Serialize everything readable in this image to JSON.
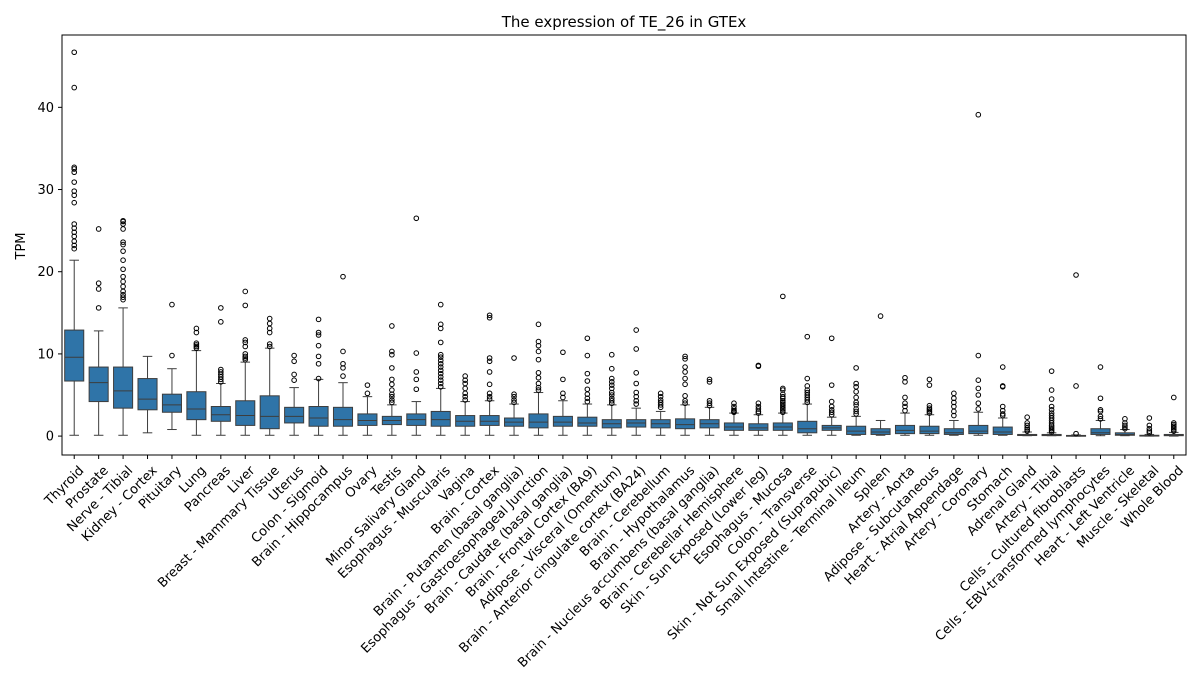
{
  "chart_data": {
    "type": "box",
    "title": "The expression of TE_26 in GTEx",
    "xlabel": "",
    "ylabel": "TPM",
    "ylim": [
      -2.3,
      48.8
    ],
    "yticks": [
      0,
      10,
      20,
      30,
      40
    ],
    "grid": false,
    "legend": "none",
    "box_color": "#2f74a8",
    "categories": [
      "Thyroid",
      "Prostate",
      "Nerve - Tibial",
      "Kidney - Cortex",
      "Pituitary",
      "Lung",
      "Pancreas",
      "Liver",
      "Breast - Mammary Tissue",
      "Uterus",
      "Colon - Sigmoid",
      "Brain - Hippocampus",
      "Ovary",
      "Testis",
      "Minor Salivary Gland",
      "Esophagus - Muscularis",
      "Vagina",
      "Brain - Cortex",
      "Brain - Putamen (basal ganglia)",
      "Esophagus - Gastroesophageal Junction",
      "Brain - Caudate (basal ganglia)",
      "Brain - Frontal Cortex (BA9)",
      "Adipose - Visceral (Omentum)",
      "Brain - Anterior cingulate cortex (BA24)",
      "Brain - Cerebellum",
      "Brain - Hypothalamus",
      "Brain - Nucleus accumbens (basal ganglia)",
      "Brain - Cerebellar Hemisphere",
      "Skin - Sun Exposed (Lower leg)",
      "Esophagus - Mucosa",
      "Colon - Transverse",
      "Skin - Not Sun Exposed (Suprapubic)",
      "Small Intestine - Terminal Ileum",
      "Spleen",
      "Artery - Aorta",
      "Adipose - Subcutaneous",
      "Heart - Atrial Appendage",
      "Artery - Coronary",
      "Stomach",
      "Adrenal Gland",
      "Artery - Tibial",
      "Cells - Cultured fibroblasts",
      "Cells - EBV-transformed lymphocytes",
      "Heart - Left Ventricle",
      "Muscle - Skeletal",
      "Whole Blood"
    ],
    "boxes": [
      {
        "min": 0.1,
        "q1": 6.7,
        "median": 9.6,
        "q3": 12.9,
        "max": 21.4,
        "outliers": [
          22.8,
          23.2,
          23.7,
          24.3,
          24.8,
          25.3,
          25.8,
          28.4,
          29.3,
          29.8,
          30.9,
          32.1,
          32.5,
          32.7,
          42.4,
          46.7
        ]
      },
      {
        "min": 0.1,
        "q1": 4.2,
        "median": 6.5,
        "q3": 8.4,
        "max": 12.8,
        "outliers": [
          15.6,
          17.9,
          18.6,
          25.2
        ]
      },
      {
        "min": 0.1,
        "q1": 3.4,
        "median": 5.5,
        "q3": 8.4,
        "max": 15.6,
        "outliers": [
          16.6,
          16.9,
          17.2,
          17.6,
          18.2,
          18.8,
          19.4,
          20.3,
          21.4,
          22.5,
          23.3,
          23.6,
          25.2,
          25.8,
          26.1,
          26.2
        ]
      },
      {
        "min": 0.4,
        "q1": 3.2,
        "median": 4.5,
        "q3": 7.0,
        "max": 9.7,
        "outliers": []
      },
      {
        "min": 0.8,
        "q1": 2.9,
        "median": 3.8,
        "q3": 5.1,
        "max": 8.2,
        "outliers": [
          9.8,
          16.0
        ]
      },
      {
        "min": 0.1,
        "q1": 2.0,
        "median": 3.3,
        "q3": 5.4,
        "max": 10.4,
        "outliers": [
          10.7,
          10.9,
          11.1,
          11.3,
          12.6,
          13.1
        ]
      },
      {
        "min": 0.1,
        "q1": 1.8,
        "median": 2.6,
        "q3": 3.6,
        "max": 6.4,
        "outliers": [
          6.6,
          6.9,
          7.2,
          7.5,
          7.8,
          8.1,
          13.9,
          15.6
        ]
      },
      {
        "min": 0.1,
        "q1": 1.3,
        "median": 2.5,
        "q3": 4.3,
        "max": 9.0,
        "outliers": [
          9.3,
          9.5,
          9.7,
          10.0,
          10.9,
          11.4,
          11.7,
          15.9,
          17.6
        ]
      },
      {
        "min": 0.1,
        "q1": 0.9,
        "median": 2.4,
        "q3": 4.9,
        "max": 10.7,
        "outliers": [
          10.9,
          11.2,
          12.6,
          13.1,
          13.7,
          14.3
        ]
      },
      {
        "min": 0.1,
        "q1": 1.6,
        "median": 2.4,
        "q3": 3.5,
        "max": 5.9,
        "outliers": [
          6.8,
          7.5,
          9.1,
          9.8
        ]
      },
      {
        "min": 0.1,
        "q1": 1.2,
        "median": 2.2,
        "q3": 3.6,
        "max": 6.9,
        "outliers": [
          7.0,
          8.8,
          9.7,
          11.0,
          12.3,
          12.6,
          14.2
        ]
      },
      {
        "min": 0.1,
        "q1": 1.2,
        "median": 2.0,
        "q3": 3.5,
        "max": 6.5,
        "outliers": [
          7.3,
          8.3,
          8.8,
          10.3,
          19.4
        ]
      },
      {
        "min": 0.1,
        "q1": 1.3,
        "median": 1.9,
        "q3": 2.7,
        "max": 4.8,
        "outliers": [
          5.2,
          6.2
        ]
      },
      {
        "min": 0.1,
        "q1": 1.4,
        "median": 1.9,
        "q3": 2.4,
        "max": 3.8,
        "outliers": [
          4.1,
          4.4,
          4.8,
          5.1,
          5.6,
          6.3,
          6.9,
          8.3,
          9.9,
          10.3,
          13.4
        ]
      },
      {
        "min": 0.1,
        "q1": 1.3,
        "median": 2.0,
        "q3": 2.7,
        "max": 4.2,
        "outliers": [
          5.7,
          6.9,
          7.8,
          10.1,
          26.5
        ]
      },
      {
        "min": 0.1,
        "q1": 1.2,
        "median": 2.0,
        "q3": 3.0,
        "max": 5.8,
        "outliers": [
          6.0,
          6.4,
          6.8,
          7.2,
          7.6,
          8.0,
          8.4,
          8.8,
          9.2,
          9.6,
          9.9,
          11.4,
          13.1,
          13.6,
          16.0
        ]
      },
      {
        "min": 0.1,
        "q1": 1.2,
        "median": 1.8,
        "q3": 2.5,
        "max": 4.2,
        "outliers": [
          4.4,
          4.8,
          5.2,
          5.8,
          6.4,
          6.8,
          7.3
        ]
      },
      {
        "min": 0.1,
        "q1": 1.3,
        "median": 1.8,
        "q3": 2.5,
        "max": 4.3,
        "outliers": [
          4.5,
          4.8,
          5.2,
          6.3,
          7.8,
          9.1,
          9.5,
          14.4,
          14.7
        ]
      },
      {
        "min": 0.1,
        "q1": 1.2,
        "median": 1.7,
        "q3": 2.2,
        "max": 3.9,
        "outliers": [
          4.1,
          4.4,
          4.8,
          5.1,
          9.5
        ]
      },
      {
        "min": 0.1,
        "q1": 1.0,
        "median": 1.7,
        "q3": 2.7,
        "max": 5.3,
        "outliers": [
          5.6,
          5.9,
          6.4,
          7.1,
          7.7,
          9.3,
          10.3,
          11.0,
          11.5,
          13.6
        ]
      },
      {
        "min": 0.1,
        "q1": 1.2,
        "median": 1.7,
        "q3": 2.4,
        "max": 4.3,
        "outliers": [
          4.7,
          5.2,
          6.9,
          10.2
        ]
      },
      {
        "min": 0.1,
        "q1": 1.2,
        "median": 1.6,
        "q3": 2.3,
        "max": 3.9,
        "outliers": [
          4.2,
          4.6,
          5.1,
          5.7,
          6.7,
          7.6,
          9.8,
          11.9
        ]
      },
      {
        "min": 0.1,
        "q1": 1.0,
        "median": 1.5,
        "q3": 2.0,
        "max": 3.8,
        "outliers": [
          4.0,
          4.3,
          4.6,
          5.0,
          5.3,
          5.8,
          6.2,
          6.6,
          7.0,
          8.2,
          9.9
        ]
      },
      {
        "min": 0.1,
        "q1": 1.1,
        "median": 1.6,
        "q3": 2.0,
        "max": 3.4,
        "outliers": [
          3.9,
          4.3,
          4.8,
          5.3,
          6.4,
          7.7,
          10.6,
          12.9
        ]
      },
      {
        "min": 0.1,
        "q1": 1.0,
        "median": 1.5,
        "q3": 2.0,
        "max": 3.0,
        "outliers": [
          3.5,
          3.8,
          4.1,
          4.4,
          4.8,
          5.2
        ]
      },
      {
        "min": 0.1,
        "q1": 0.9,
        "median": 1.4,
        "q3": 2.1,
        "max": 3.8,
        "outliers": [
          4.0,
          4.3,
          4.9,
          6.3,
          7.0,
          7.8,
          8.4,
          9.4,
          9.7
        ]
      },
      {
        "min": 0.1,
        "q1": 1.0,
        "median": 1.5,
        "q3": 2.0,
        "max": 3.5,
        "outliers": [
          3.7,
          4.0,
          4.3,
          6.6,
          6.9
        ]
      },
      {
        "min": 0.1,
        "q1": 0.7,
        "median": 1.1,
        "q3": 1.6,
        "max": 2.8,
        "outliers": [
          2.9,
          3.0,
          3.1,
          3.3,
          3.6,
          4.0
        ]
      },
      {
        "min": 0.1,
        "q1": 0.7,
        "median": 1.0,
        "q3": 1.5,
        "max": 2.6,
        "outliers": [
          2.8,
          3.0,
          3.3,
          3.6,
          4.0,
          8.5,
          8.6
        ]
      },
      {
        "min": 0.1,
        "q1": 0.7,
        "median": 1.1,
        "q3": 1.6,
        "max": 2.8,
        "outliers": [
          2.9,
          3.1,
          3.3,
          3.5,
          3.7,
          3.9,
          4.1,
          4.3,
          4.6,
          4.8,
          5.1,
          5.6,
          5.8,
          17.0
        ]
      },
      {
        "min": 0.1,
        "q1": 0.4,
        "median": 0.9,
        "q3": 1.8,
        "max": 3.9,
        "outliers": [
          4.1,
          4.4,
          4.7,
          5.0,
          5.3,
          5.6,
          6.1,
          7.0,
          12.1
        ]
      },
      {
        "min": 0.1,
        "q1": 0.7,
        "median": 1.0,
        "q3": 1.3,
        "max": 2.3,
        "outliers": [
          2.6,
          2.9,
          3.2,
          3.6,
          4.2,
          6.2,
          11.9
        ]
      },
      {
        "min": 0.1,
        "q1": 0.2,
        "median": 0.6,
        "q3": 1.2,
        "max": 2.4,
        "outliers": [
          2.7,
          3.0,
          3.3,
          3.8,
          4.1,
          4.7,
          5.4,
          6.0,
          6.4,
          8.3
        ]
      },
      {
        "min": 0.1,
        "q1": 0.2,
        "median": 0.5,
        "q3": 0.9,
        "max": 1.9,
        "outliers": [
          14.6
        ]
      },
      {
        "min": 0.1,
        "q1": 0.3,
        "median": 0.7,
        "q3": 1.3,
        "max": 2.8,
        "outliers": [
          3.1,
          3.6,
          4.0,
          4.7,
          6.6,
          7.1
        ]
      },
      {
        "min": 0.1,
        "q1": 0.3,
        "median": 0.6,
        "q3": 1.2,
        "max": 2.6,
        "outliers": [
          2.8,
          3.0,
          3.2,
          3.4,
          3.7,
          6.2,
          6.9
        ]
      },
      {
        "min": 0.1,
        "q1": 0.2,
        "median": 0.4,
        "q3": 0.9,
        "max": 1.9,
        "outliers": [
          2.5,
          3.0,
          3.6,
          4.1,
          4.6,
          5.2
        ]
      },
      {
        "min": 0.1,
        "q1": 0.3,
        "median": 0.6,
        "q3": 1.3,
        "max": 2.9,
        "outliers": [
          3.3,
          4.0,
          5.0,
          5.8,
          6.8,
          9.8,
          39.1
        ]
      },
      {
        "min": 0.1,
        "q1": 0.2,
        "median": 0.5,
        "q3": 1.1,
        "max": 2.2,
        "outliers": [
          2.5,
          2.7,
          3.1,
          3.6,
          6.0,
          6.1,
          8.4
        ]
      },
      {
        "min": 0.05,
        "q1": 0.07,
        "median": 0.1,
        "q3": 0.2,
        "max": 0.5,
        "outliers": [
          0.6,
          0.8,
          1.0,
          1.3,
          1.6,
          2.3
        ]
      },
      {
        "min": 0.05,
        "q1": 0.06,
        "median": 0.1,
        "q3": 0.2,
        "max": 0.4,
        "outliers": [
          0.5,
          0.7,
          0.9,
          1.1,
          1.3,
          1.6,
          1.9,
          2.2,
          2.5,
          2.8,
          3.2,
          3.6,
          4.5,
          5.6,
          7.9
        ]
      },
      {
        "min": 0.0,
        "q1": 0.02,
        "median": 0.05,
        "q3": 0.08,
        "max": 0.15,
        "outliers": [
          0.3,
          6.1,
          19.6
        ]
      },
      {
        "min": 0.05,
        "q1": 0.2,
        "median": 0.4,
        "q3": 0.9,
        "max": 1.9,
        "outliers": [
          2.1,
          2.4,
          3.0,
          3.2,
          4.6,
          8.4
        ]
      },
      {
        "min": 0.05,
        "q1": 0.1,
        "median": 0.2,
        "q3": 0.4,
        "max": 0.8,
        "outliers": [
          0.9,
          1.1,
          1.3,
          1.6,
          2.1
        ]
      },
      {
        "min": 0.0,
        "q1": 0.02,
        "median": 0.05,
        "q3": 0.1,
        "max": 0.2,
        "outliers": [
          0.4,
          0.6,
          0.9,
          1.3,
          2.2
        ]
      },
      {
        "min": 0.0,
        "q1": 0.05,
        "median": 0.1,
        "q3": 0.2,
        "max": 0.45,
        "outliers": [
          0.6,
          0.8,
          1.0,
          1.2,
          1.4,
          1.6,
          4.7
        ]
      }
    ]
  }
}
